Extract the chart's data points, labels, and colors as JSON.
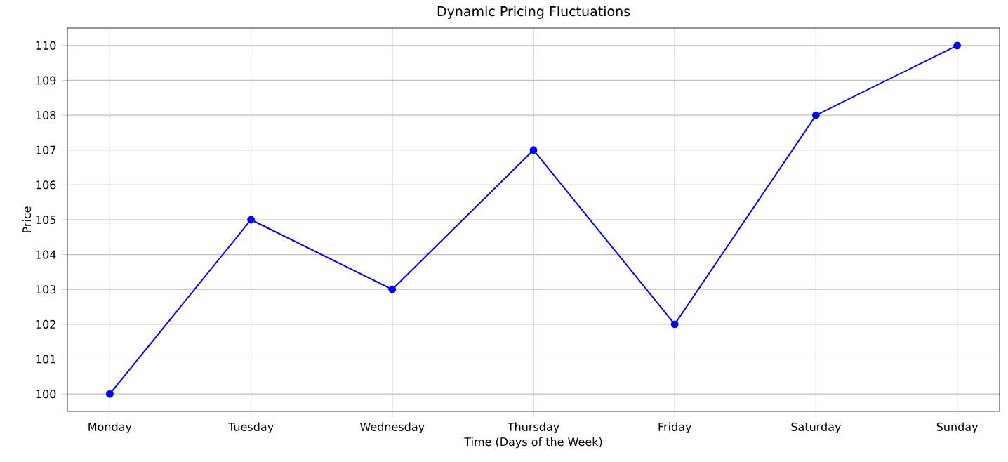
{
  "chart_data": {
    "type": "line",
    "title": "Dynamic Pricing Fluctuations",
    "xlabel": "Time (Days of the Week)",
    "ylabel": "Price",
    "categories": [
      "Monday",
      "Tuesday",
      "Wednesday",
      "Thursday",
      "Friday",
      "Saturday",
      "Sunday"
    ],
    "values": [
      100,
      105,
      103,
      107,
      102,
      108,
      110
    ],
    "color": "#0000ff",
    "marker": "circle",
    "line_style": "solid",
    "ylim": [
      99.5,
      110.5
    ],
    "yticks": [
      100,
      101,
      102,
      103,
      104,
      105,
      106,
      107,
      108,
      109,
      110
    ],
    "grid": true
  }
}
